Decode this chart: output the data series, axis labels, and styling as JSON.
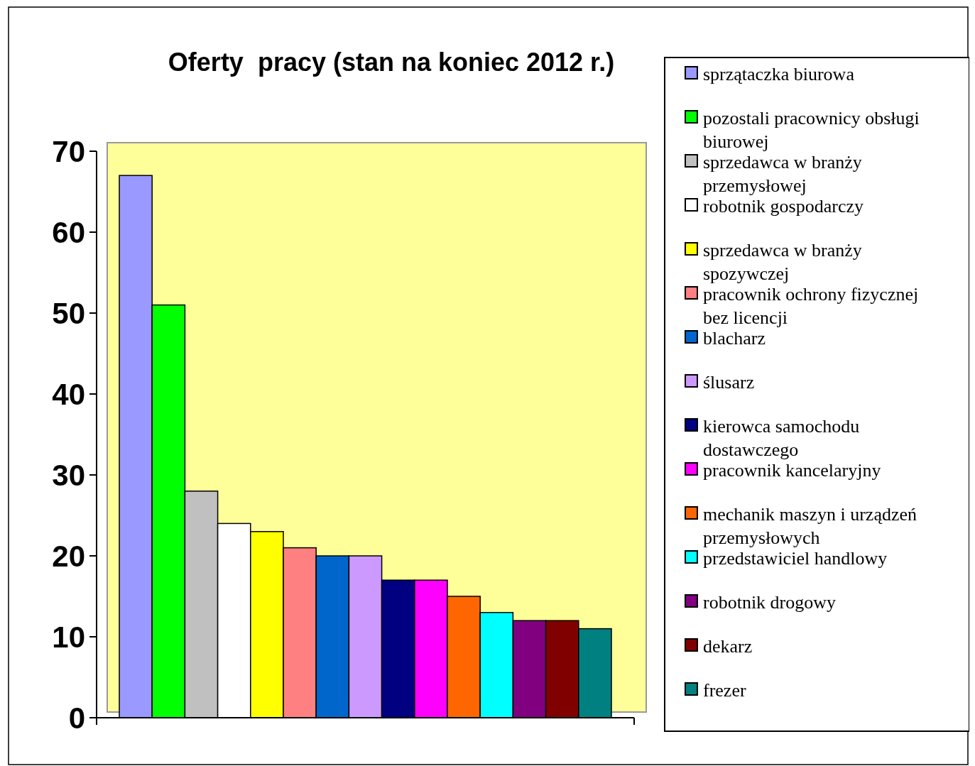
{
  "chart_data": {
    "type": "bar",
    "title": "Oferty  pracy (stan na koniec 2012 r.)",
    "categories": [
      null
    ],
    "series": [
      {
        "name": "sprzątaczka biurowa",
        "color": "#9999ff",
        "values": [
          67
        ]
      },
      {
        "name": "pozostali pracownicy obsługi biurowej",
        "color": "#00ff00",
        "values": [
          51
        ]
      },
      {
        "name": "sprzedawca w branży przemysłowej",
        "color": "#c0c0c0",
        "values": [
          28
        ]
      },
      {
        "name": "robotnik gospodarczy",
        "color": "#ffffff",
        "values": [
          24
        ]
      },
      {
        "name": "sprzedawca w branży spozywczej",
        "color": "#ffff00",
        "values": [
          23
        ]
      },
      {
        "name": "pracownik ochrony fizycznej bez licencji",
        "color": "#ff8080",
        "values": [
          21
        ]
      },
      {
        "name": "blacharz",
        "color": "#0066cc",
        "values": [
          20
        ]
      },
      {
        "name": "ślusarz",
        "color": "#cc99ff",
        "values": [
          20
        ]
      },
      {
        "name": "kierowca samochodu dostawczego",
        "color": "#000080",
        "values": [
          17
        ]
      },
      {
        "name": "pracownik kancelaryjny",
        "color": "#ff00ff",
        "values": [
          17
        ]
      },
      {
        "name": "mechanik maszyn i urządzeń przemysłowych",
        "color": "#ff6600",
        "values": [
          15
        ]
      },
      {
        "name": "przedstawiciel handlowy",
        "color": "#00ffff",
        "values": [
          13
        ]
      },
      {
        "name": "robotnik drogowy",
        "color": "#800080",
        "values": [
          12
        ]
      },
      {
        "name": "dekarz",
        "color": "#800000",
        "values": [
          12
        ]
      },
      {
        "name": "frezer",
        "color": "#008080",
        "values": [
          11
        ]
      }
    ],
    "ylim": [
      0,
      70
    ],
    "yticks": [
      0,
      10,
      20,
      30,
      40,
      50,
      60,
      70
    ],
    "tick_labels": "y",
    "legend": "right"
  }
}
